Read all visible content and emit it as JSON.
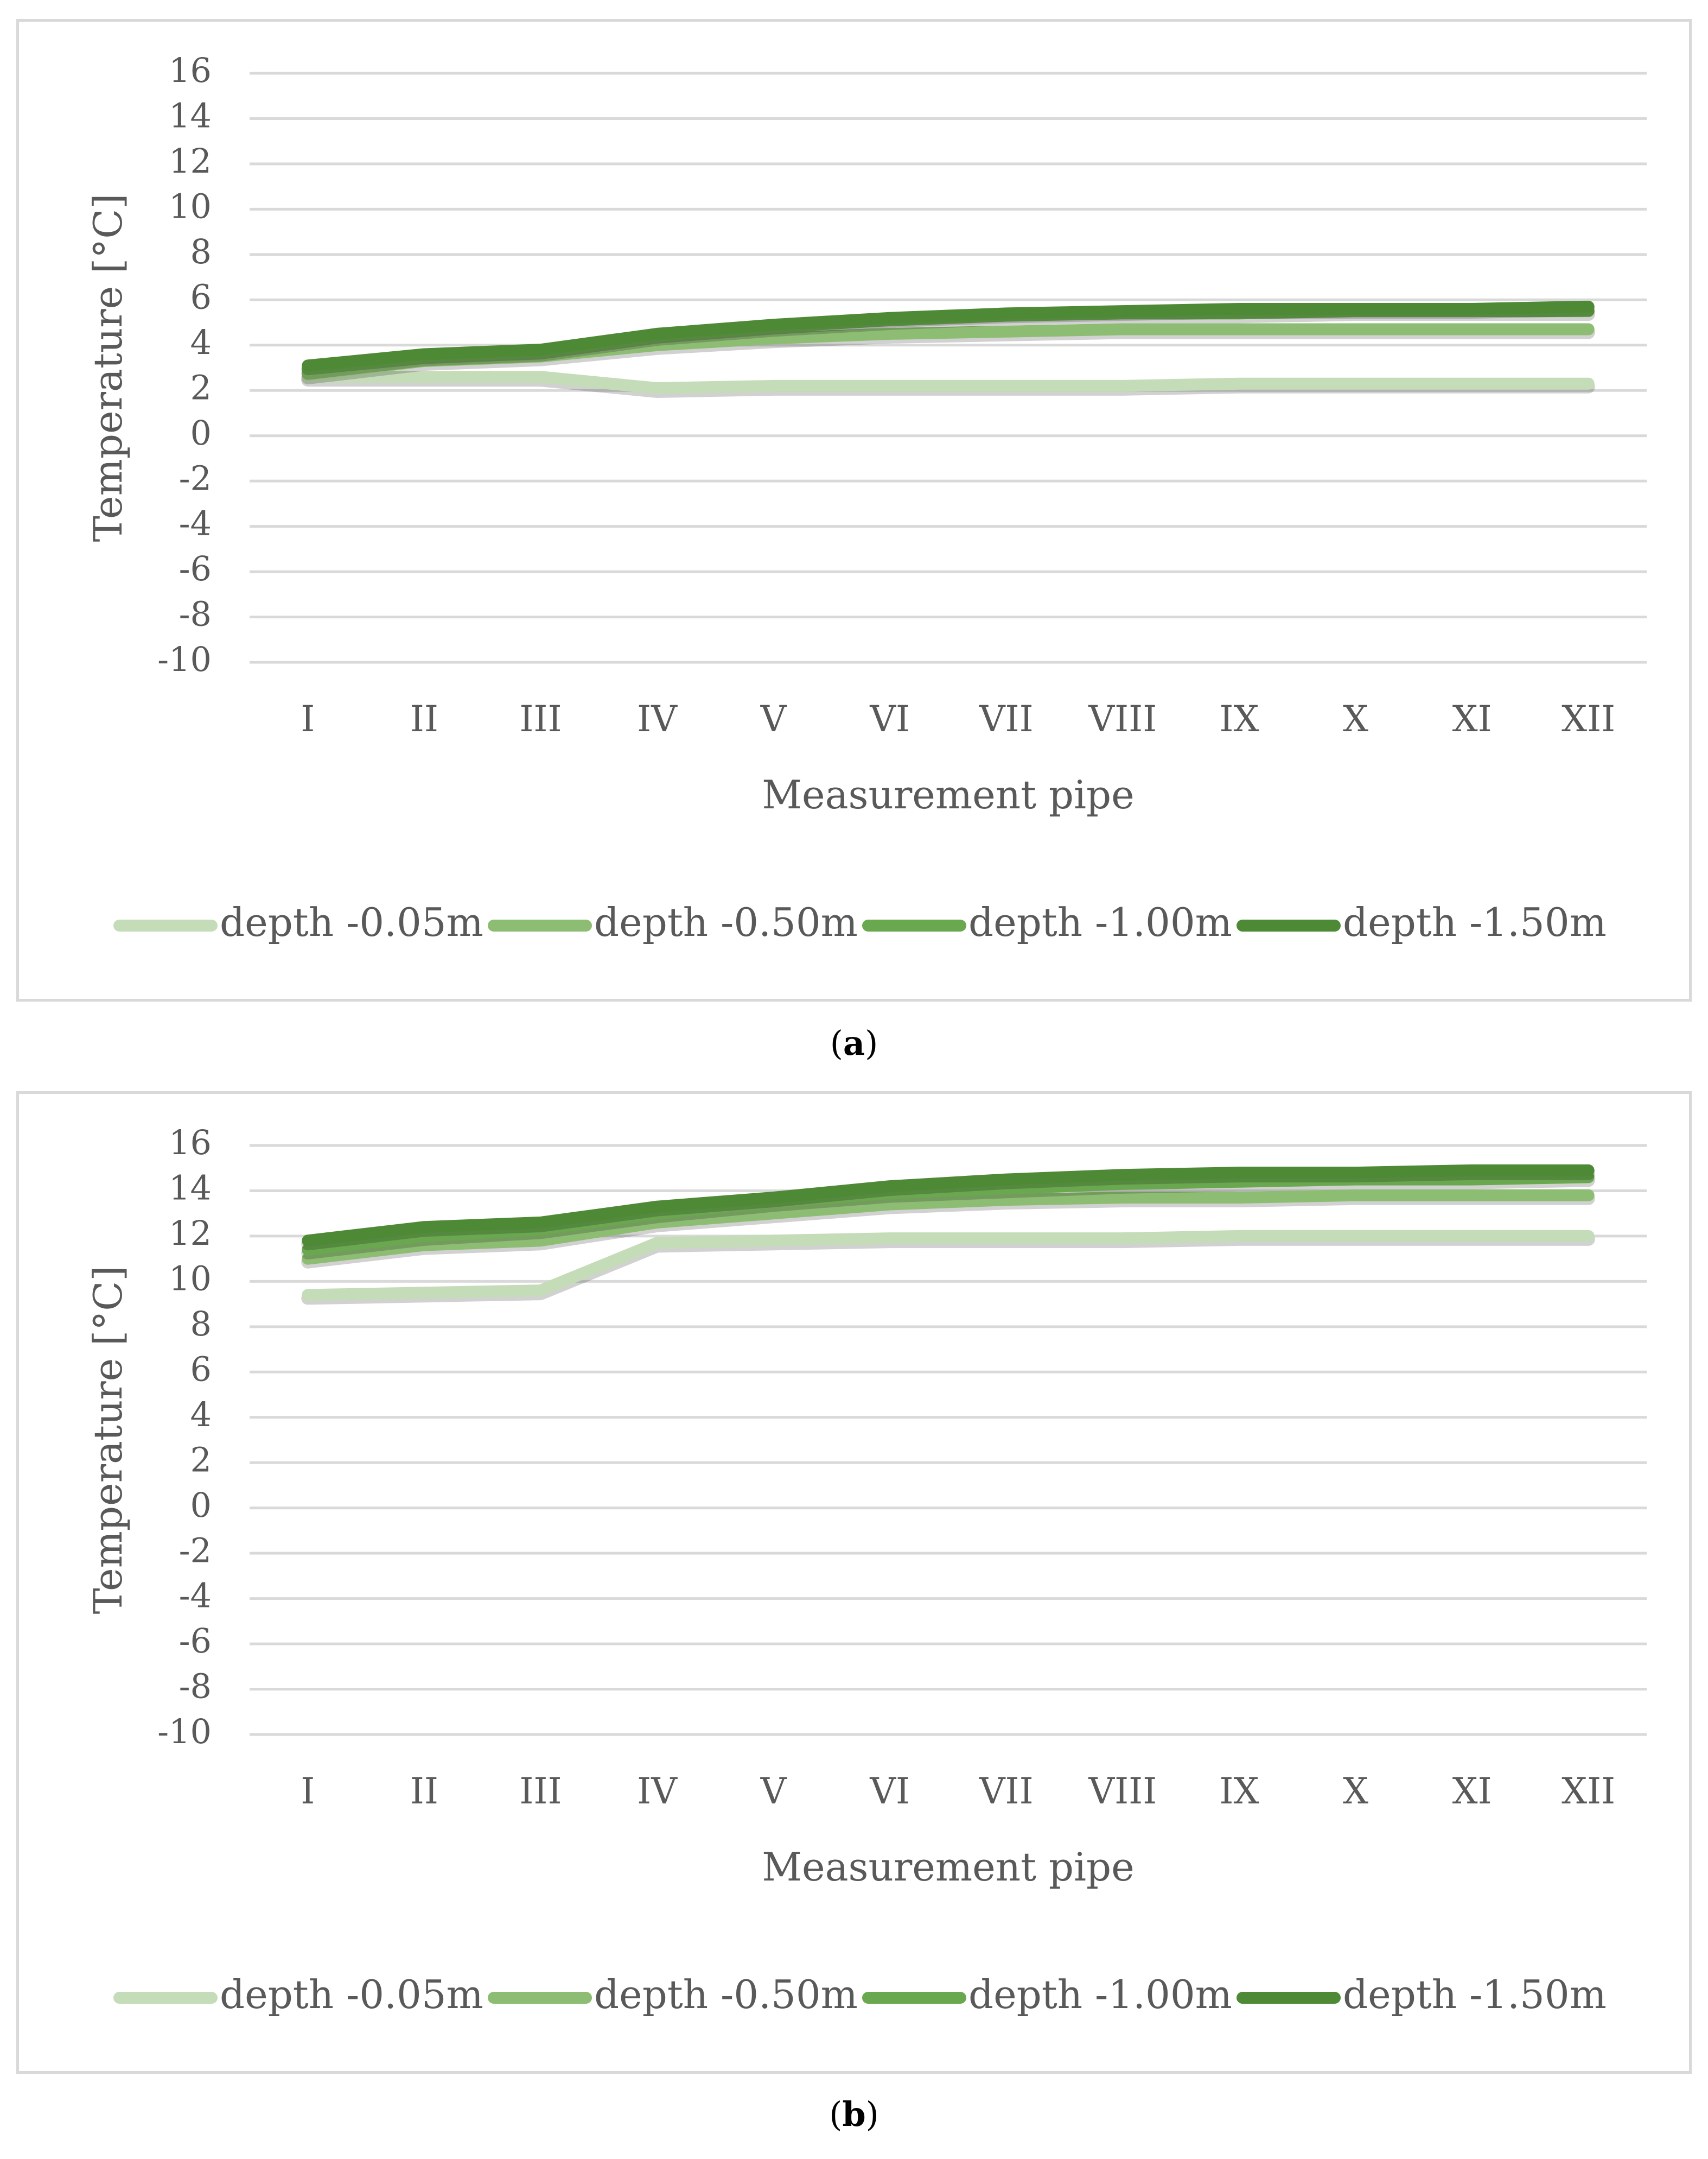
{
  "chart_data": [
    {
      "type": "line",
      "panel_label": "a",
      "xlabel": "Measurement pipe",
      "ylabel": "Temperature [°C]",
      "ylim": [
        -10,
        16
      ],
      "yticks": [
        "16",
        "14",
        "12",
        "10",
        "8",
        "6",
        "4",
        "2",
        "0",
        "-2",
        "-4",
        "-6",
        "-8",
        "-10"
      ],
      "grid": true,
      "legend_position": "bottom",
      "categories": [
        "I",
        "II",
        "III",
        "IV",
        "V",
        "VI",
        "VII",
        "VIII",
        "IX",
        "X",
        "XI",
        "XII"
      ],
      "series": [
        {
          "name": "depth -0.05m",
          "color": "#c5dcb8",
          "values": [
            2.6,
            2.6,
            2.6,
            2.1,
            2.2,
            2.2,
            2.2,
            2.2,
            2.3,
            2.3,
            2.3,
            2.3
          ]
        },
        {
          "name": "depth -0.50m",
          "color": "#8dbd72",
          "values": [
            2.7,
            3.3,
            3.5,
            4.0,
            4.3,
            4.5,
            4.6,
            4.7,
            4.7,
            4.7,
            4.7,
            4.7
          ]
        },
        {
          "name": "depth -1.00m",
          "color": "#6aa84f",
          "values": [
            2.9,
            3.5,
            3.7,
            4.4,
            4.8,
            5.1,
            5.3,
            5.4,
            5.4,
            5.5,
            5.5,
            5.5
          ]
        },
        {
          "name": "depth -1.50m",
          "color": "#4e8a35",
          "values": [
            3.1,
            3.6,
            3.8,
            4.5,
            4.9,
            5.2,
            5.4,
            5.5,
            5.6,
            5.6,
            5.6,
            5.7
          ]
        }
      ]
    },
    {
      "type": "line",
      "panel_label": "b",
      "xlabel": "Measurement pipe",
      "ylabel": "Temperature [°C]",
      "ylim": [
        -10,
        16
      ],
      "yticks": [
        "16",
        "14",
        "12",
        "10",
        "8",
        "6",
        "4",
        "2",
        "0",
        "-2",
        "-4",
        "-6",
        "-8",
        "-10"
      ],
      "grid": true,
      "legend_position": "bottom",
      "categories": [
        "I",
        "II",
        "III",
        "IV",
        "V",
        "VI",
        "VII",
        "VIII",
        "IX",
        "X",
        "XI",
        "XII"
      ],
      "series": [
        {
          "name": "depth -0.05m",
          "color": "#c5dcb8",
          "values": [
            9.4,
            9.5,
            9.6,
            11.7,
            11.8,
            11.9,
            11.9,
            11.9,
            12.0,
            12.0,
            12.0,
            12.0
          ]
        },
        {
          "name": "depth -0.50m",
          "color": "#8dbd72",
          "values": [
            11.0,
            11.6,
            11.8,
            12.6,
            13.0,
            13.4,
            13.6,
            13.7,
            13.7,
            13.8,
            13.8,
            13.8
          ]
        },
        {
          "name": "depth -1.00m",
          "color": "#6aa84f",
          "values": [
            11.4,
            12.0,
            12.3,
            13.0,
            13.5,
            13.9,
            14.1,
            14.3,
            14.4,
            14.5,
            14.5,
            14.6
          ]
        },
        {
          "name": "depth -1.50m",
          "color": "#4e8a35",
          "values": [
            11.8,
            12.4,
            12.6,
            13.3,
            13.7,
            14.2,
            14.5,
            14.7,
            14.8,
            14.8,
            14.9,
            14.9
          ]
        }
      ]
    }
  ],
  "captions": [
    {
      "open": "(",
      "label": "a",
      "close": ")"
    },
    {
      "open": "(",
      "label": "b",
      "close": ")"
    }
  ]
}
